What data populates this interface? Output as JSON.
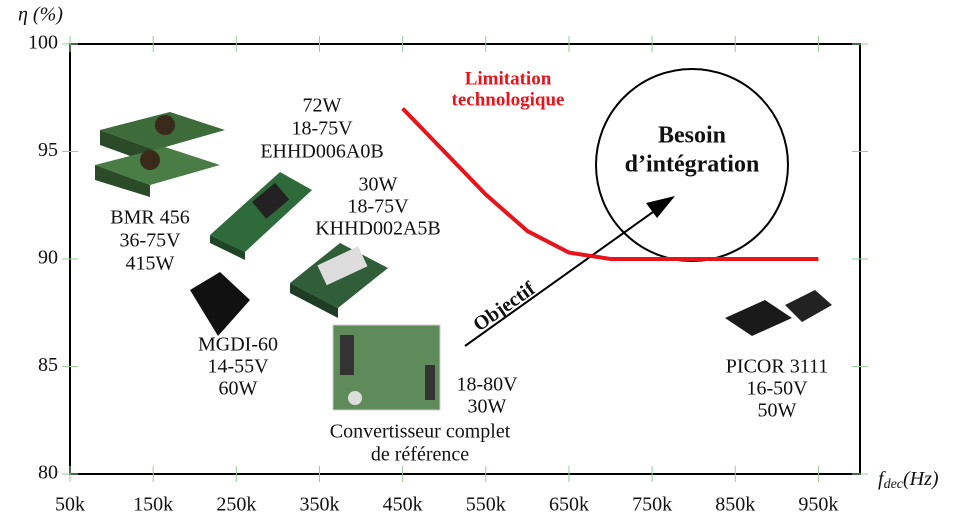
{
  "chart_data": {
    "type": "line",
    "y_label": "η (%)",
    "x_label": {
      "base": "f",
      "sub": "dec",
      "rest": "(Hz)"
    },
    "xlim": [
      50000,
      1000000
    ],
    "xticks": [
      {
        "value": 50000,
        "label": "50k"
      },
      {
        "value": 150000,
        "label": "150k"
      },
      {
        "value": 250000,
        "label": "250k"
      },
      {
        "value": 350000,
        "label": "350k"
      },
      {
        "value": 450000,
        "label": "450k"
      },
      {
        "value": 550000,
        "label": "550k"
      },
      {
        "value": 650000,
        "label": "650k"
      },
      {
        "value": 750000,
        "label": "750k"
      },
      {
        "value": 850000,
        "label": "850k"
      },
      {
        "value": 950000,
        "label": "950k"
      }
    ],
    "ylim": [
      80,
      100
    ],
    "yticks": [
      80,
      85,
      90,
      95,
      100
    ],
    "x": [
      450000,
      500000,
      550000,
      600000,
      650000,
      700000,
      800000,
      950000
    ],
    "series": [
      {
        "color": "#e8141b",
        "values": [
          97,
          95,
          93,
          91.3,
          90.3,
          90,
          90,
          90
        ]
      }
    ],
    "annotations": [
      {
        "lines": [
          "72W",
          "18-75V",
          "EHHD006A0B"
        ]
      },
      {
        "lines": [
          "30W",
          "18-75V",
          "KHHD002A5B"
        ]
      },
      {
        "lines": [
          "BMR 456",
          "36-75V",
          "415W"
        ]
      },
      {
        "lines": [
          "MGDI-60",
          "14-55V",
          "60W"
        ]
      },
      {
        "lines": [
          "18-80V",
          "30W"
        ]
      },
      {
        "lines": [
          "Convertisseur complet",
          "de référence"
        ]
      },
      {
        "lines": [
          "PICOR 3111",
          "16-50V",
          "50W"
        ]
      },
      {
        "lines": [
          "Besoin",
          "d’intégration"
        ]
      },
      {
        "lines": [
          "Limitation",
          "technologique"
        ]
      },
      {
        "lines": [
          "Objectif"
        ]
      }
    ]
  }
}
